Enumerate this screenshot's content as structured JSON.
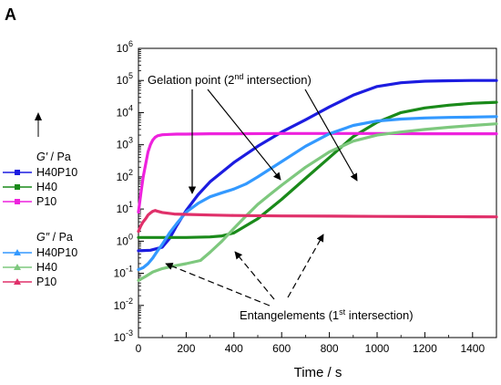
{
  "panel_label": "A",
  "chart_data": {
    "type": "line",
    "xlabel": "Time / s",
    "x_ticks": [
      "0",
      "200",
      "400",
      "600",
      "800",
      "1000",
      "1200",
      "1400"
    ],
    "y_ticks": [
      {
        "base": "10",
        "exp": "-3"
      },
      {
        "base": "10",
        "exp": "-2"
      },
      {
        "base": "10",
        "exp": "-1"
      },
      {
        "base": "10",
        "exp": "0"
      },
      {
        "base": "10",
        "exp": "1"
      },
      {
        "base": "10",
        "exp": "2"
      },
      {
        "base": "10",
        "exp": "3"
      },
      {
        "base": "10",
        "exp": "4"
      },
      {
        "base": "10",
        "exp": "5"
      },
      {
        "base": "10",
        "exp": "6"
      }
    ],
    "xlim": [
      0,
      1500
    ],
    "ylim_log10": [
      -3,
      6
    ],
    "y_scale": "log",
    "legend_placement": "left",
    "legend_groups": [
      {
        "title_symbol": "G′",
        "title_unit": " / Pa",
        "entries": [
          {
            "name": "H40P10",
            "color": "#1c1ce0",
            "marker": "square"
          },
          {
            "name": "H40",
            "color": "#1a8a1a",
            "marker": "square"
          },
          {
            "name": "P10",
            "color": "#ee22dd",
            "marker": "square"
          }
        ]
      },
      {
        "title_symbol": "G″",
        "title_unit": " / Pa",
        "entries": [
          {
            "name": "H40P10",
            "color": "#3399ff",
            "marker": "triangle"
          },
          {
            "name": "H40",
            "color": "#7ec87e",
            "marker": "triangle"
          },
          {
            "name": "P10",
            "color": "#e0306a",
            "marker": "triangle"
          }
        ]
      }
    ],
    "series": [
      {
        "name": "H40P10",
        "group": "G′",
        "color": "#1c1ce0",
        "width": 3.2,
        "x": [
          0,
          50,
          100,
          130,
          160,
          200,
          250,
          300,
          400,
          500,
          600,
          700,
          800,
          900,
          1000,
          1100,
          1200,
          1300,
          1400,
          1500
        ],
        "y": [
          0.5,
          0.52,
          0.65,
          1.2,
          3,
          9,
          28,
          70,
          280,
          900,
          2500,
          6000,
          15000,
          35000,
          65000,
          85000,
          95000,
          98000,
          100000,
          100000
        ]
      },
      {
        "name": "H40",
        "group": "G′",
        "color": "#1a8a1a",
        "width": 3.2,
        "x": [
          0,
          50,
          100,
          200,
          300,
          350,
          400,
          450,
          500,
          550,
          600,
          700,
          800,
          900,
          1000,
          1100,
          1200,
          1300,
          1400,
          1500
        ],
        "y": [
          1.3,
          1.3,
          1.3,
          1.3,
          1.35,
          1.45,
          1.8,
          3,
          5,
          10,
          20,
          90,
          400,
          1800,
          5000,
          10000,
          14000,
          17000,
          19500,
          21000
        ]
      },
      {
        "name": "P10",
        "group": "G′",
        "color": "#ee22dd",
        "width": 3.2,
        "x": [
          0,
          10,
          20,
          30,
          40,
          50,
          60,
          70,
          80,
          100,
          130,
          160,
          200,
          300,
          400,
          600,
          800,
          1000,
          1200,
          1400,
          1500
        ],
        "y": [
          8,
          30,
          100,
          250,
          600,
          1000,
          1400,
          1700,
          1900,
          2050,
          2100,
          2150,
          2150,
          2200,
          2200,
          2250,
          2250,
          2250,
          2200,
          2200,
          2200
        ]
      },
      {
        "name": "H40P10",
        "group": "G″",
        "color": "#3399ff",
        "width": 3.2,
        "x": [
          0,
          20,
          40,
          60,
          80,
          100,
          130,
          160,
          200,
          250,
          300,
          350,
          400,
          450,
          500,
          600,
          700,
          800,
          900,
          1000,
          1100,
          1200,
          1300,
          1400,
          1500
        ],
        "y": [
          0.13,
          0.15,
          0.2,
          0.3,
          0.5,
          0.8,
          1.8,
          3.5,
          8,
          15,
          24,
          32,
          42,
          60,
          100,
          300,
          900,
          2200,
          4000,
          5500,
          6300,
          6800,
          7100,
          7300,
          7500
        ]
      },
      {
        "name": "H40",
        "group": "G″",
        "color": "#7ec87e",
        "width": 3.2,
        "x": [
          0,
          30,
          60,
          100,
          150,
          200,
          260,
          300,
          350,
          400,
          450,
          500,
          550,
          600,
          700,
          800,
          900,
          1000,
          1100,
          1200,
          1300,
          1400,
          1500
        ],
        "y": [
          0.06,
          0.08,
          0.11,
          0.14,
          0.17,
          0.2,
          0.25,
          0.45,
          1,
          2.5,
          6,
          14,
          28,
          55,
          200,
          600,
          1300,
          2000,
          2500,
          3000,
          3500,
          4000,
          4500
        ]
      },
      {
        "name": "P10",
        "group": "G″",
        "color": "#e0306a",
        "width": 3.2,
        "x": [
          0,
          10,
          20,
          30,
          40,
          50,
          60,
          70,
          80,
          100,
          150,
          200,
          300,
          400,
          600,
          800,
          1000,
          1200,
          1400,
          1500
        ],
        "y": [
          2,
          3,
          4,
          5,
          6.5,
          7.5,
          8.5,
          9,
          8.5,
          7.8,
          7,
          6.8,
          6.5,
          6.3,
          6.1,
          6,
          5.9,
          5.8,
          5.75,
          5.7
        ]
      }
    ],
    "annotations": {
      "gelation": {
        "text_before": "Gelation point (2",
        "sup": "nd",
        "text_after": " intersection)"
      },
      "entanglements": {
        "text_before": "Entangelements (1",
        "sup": "st",
        "text_after": " intersection)"
      }
    }
  }
}
